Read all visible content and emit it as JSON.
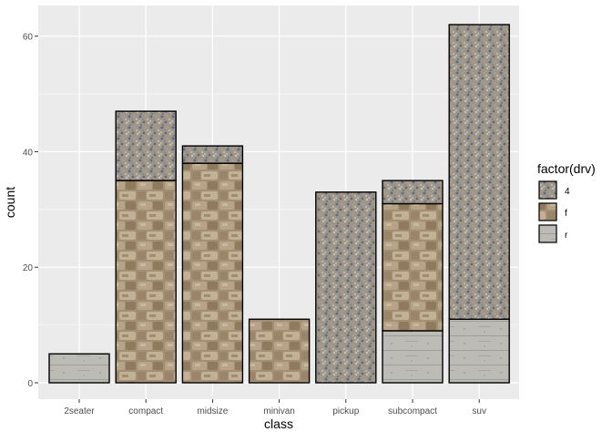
{
  "chart_data": {
    "type": "bar",
    "stacked": true,
    "xlabel": "class",
    "ylabel": "count",
    "categories": [
      "2seater",
      "compact",
      "midsize",
      "minivan",
      "pickup",
      "subcompact",
      "suv"
    ],
    "ylim": [
      0,
      62
    ],
    "yticks": [
      0,
      20,
      40,
      60
    ],
    "grid": true,
    "legend": {
      "title": "factor(drv)",
      "placement": "right",
      "entries": [
        {
          "name": "4",
          "pattern": "gravel"
        },
        {
          "name": "f",
          "pattern": "stone-wall"
        },
        {
          "name": "r",
          "pattern": "concrete"
        }
      ]
    },
    "series": [
      {
        "name": "4",
        "values": [
          0,
          12,
          3,
          0,
          33,
          4,
          51
        ]
      },
      {
        "name": "f",
        "values": [
          0,
          35,
          38,
          11,
          0,
          22,
          0
        ]
      },
      {
        "name": "r",
        "values": [
          5,
          0,
          0,
          0,
          0,
          9,
          11
        ]
      }
    ],
    "colors": {
      "panel_background": "#EBEBEB",
      "grid_major": "#FFFFFF",
      "bar_outline": "#000000",
      "gravel": "#9c968c",
      "stone_wall": "#a89478",
      "concrete": "#b8b6b0"
    }
  }
}
